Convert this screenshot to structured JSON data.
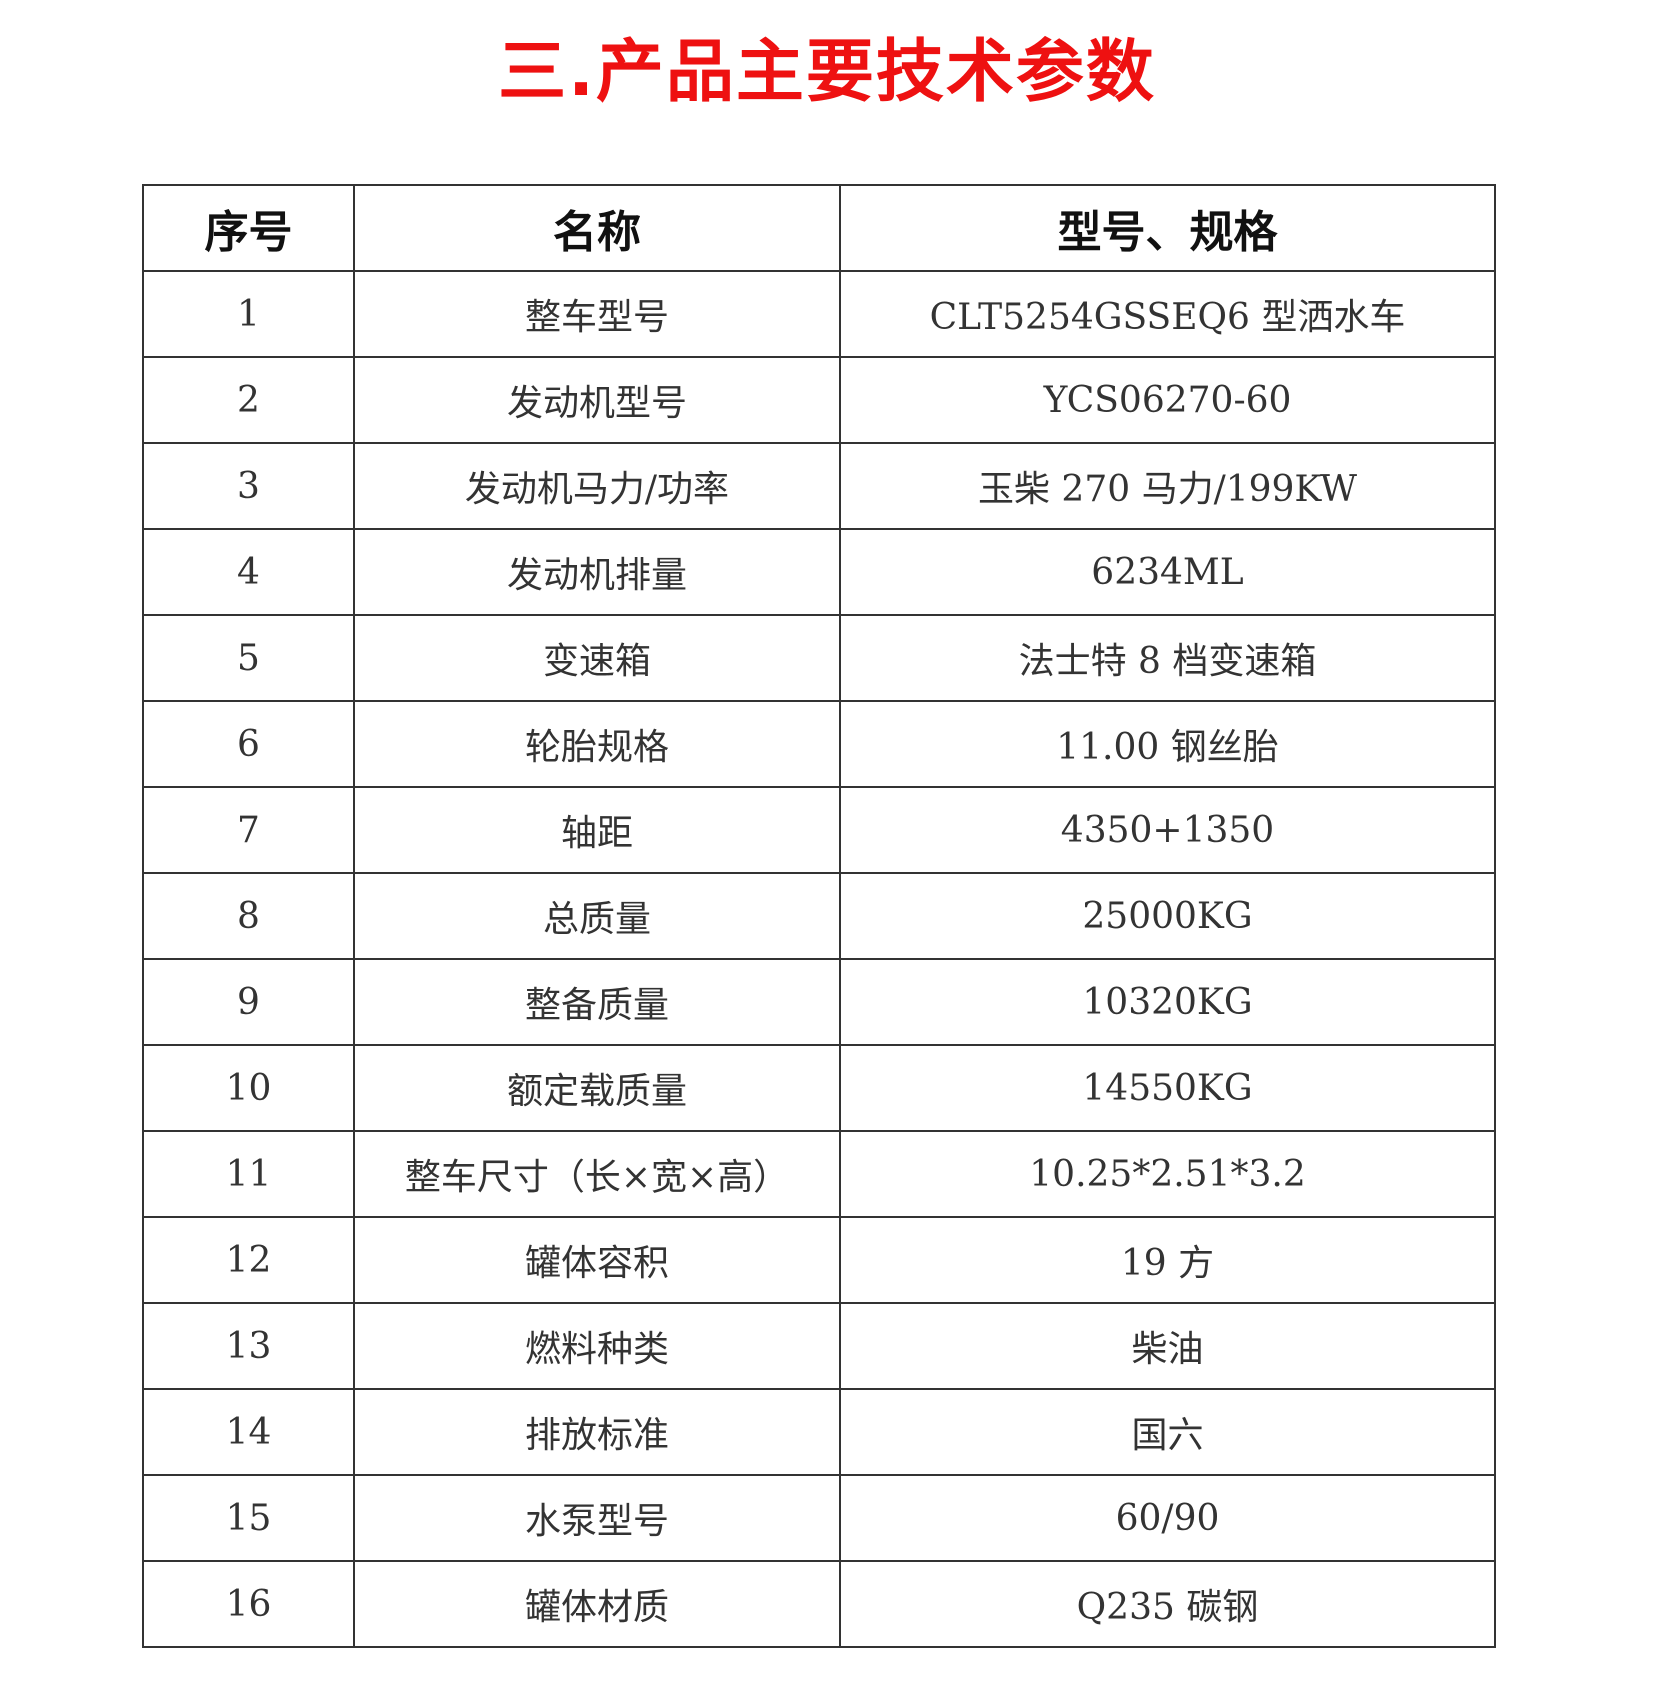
{
  "title": "三.产品主要技术参数",
  "table": {
    "headers": [
      "序号",
      "名称",
      "型号、规格"
    ],
    "rows": [
      [
        "1",
        "整车型号",
        "CLT5254GSSEQ6 型洒水车"
      ],
      [
        "2",
        "发动机型号",
        "YCS06270-60"
      ],
      [
        "3",
        "发动机马力/功率",
        "玉柴 270 马力/199KW"
      ],
      [
        "4",
        "发动机排量",
        "6234ML"
      ],
      [
        "5",
        "变速箱",
        "法士特 8 档变速箱"
      ],
      [
        "6",
        "轮胎规格",
        "11.00 钢丝胎"
      ],
      [
        "7",
        "轴距",
        "4350+1350"
      ],
      [
        "8",
        "总质量",
        "25000KG"
      ],
      [
        "9",
        "整备质量",
        "10320KG"
      ],
      [
        "10",
        "额定载质量",
        "14550KG"
      ],
      [
        "11",
        "整车尺寸（长×宽×高）",
        "10.25*2.51*3.2"
      ],
      [
        "12",
        "罐体容积",
        "19 方"
      ],
      [
        "13",
        "燃料种类",
        "柴油"
      ],
      [
        "14",
        "排放标准",
        "国六"
      ],
      [
        "15",
        "水泵型号",
        "60/90"
      ],
      [
        "16",
        "罐体材质",
        "Q235 碳钢"
      ]
    ]
  },
  "colors": {
    "title": "#ee1111",
    "border": "#333333"
  }
}
